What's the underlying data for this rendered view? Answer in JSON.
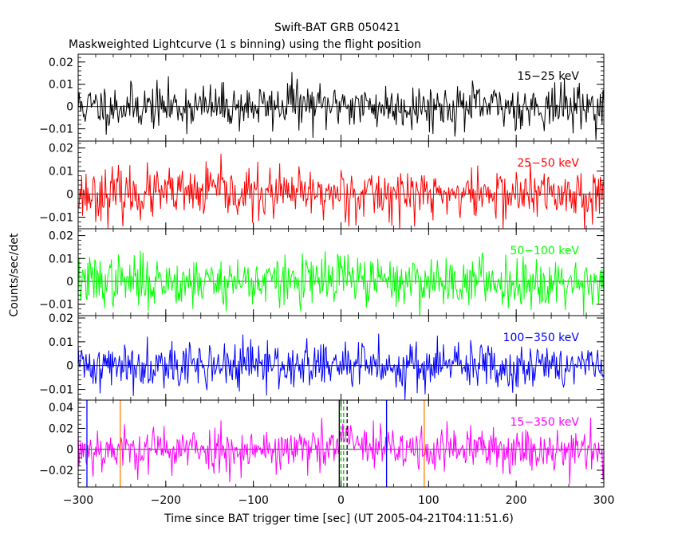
{
  "title": "Swift-BAT GRB 050421",
  "subtitle": "Maskweighted Lightcurve (1 s binning) using the flight position",
  "xlabel": "Time since BAT trigger time [sec] (UT 2005-04-21T04:11:51.6)",
  "ylabel": "Counts/sec/det",
  "chart_data": {
    "type": "line",
    "xlim": [
      -300,
      300
    ],
    "x_ticks": [
      -300,
      -200,
      -100,
      0,
      100,
      200,
      300
    ],
    "x_tick_labels": [
      "−300",
      "−200",
      "−100",
      "0",
      "100",
      "200",
      "300"
    ],
    "binning_s": 1,
    "panels": [
      {
        "name": "15−25 keV",
        "color": "#000000",
        "ylim": [
          -0.0155,
          0.0235
        ],
        "y_ticks": [
          -0.01,
          0,
          0.01,
          0.02
        ],
        "y_tick_labels": [
          "−0.01",
          "0",
          "0.01",
          "0.02"
        ],
        "noise_sigma": 0.005,
        "seed": 11,
        "peaks": [
          [
            -60,
            0.006
          ],
          [
            0,
            0.004
          ]
        ]
      },
      {
        "name": "25−50 keV",
        "color": "#ff0000",
        "ylim": [
          -0.015,
          0.023
        ],
        "y_ticks": [
          -0.01,
          0,
          0.01,
          0.02
        ],
        "y_tick_labels": [
          "−0.01",
          "0",
          "0.01",
          "0.02"
        ],
        "noise_sigma": 0.0055,
        "seed": 23,
        "peaks": [
          [
            -150,
            0.005
          ],
          [
            0,
            0.003
          ]
        ]
      },
      {
        "name": "50−100 keV",
        "color": "#00ff00",
        "ylim": [
          -0.015,
          0.023
        ],
        "y_ticks": [
          -0.01,
          0,
          0.01,
          0.02
        ],
        "y_tick_labels": [
          "−0.01",
          "0",
          "0.01",
          "0.02"
        ],
        "noise_sigma": 0.0055,
        "seed": 37,
        "peaks": [
          [
            0,
            0.006
          ]
        ]
      },
      {
        "name": "100−350 keV",
        "color": "#0000ff",
        "ylim": [
          -0.0145,
          0.021
        ],
        "y_ticks": [
          -0.01,
          0,
          0.01,
          0.02
        ],
        "y_tick_labels": [
          "−0.01",
          "0",
          "0.01",
          "0.02"
        ],
        "noise_sigma": 0.005,
        "seed": 41,
        "peaks": [
          [
            -210,
            0.008
          ]
        ]
      },
      {
        "name": "15−350 keV",
        "color": "#ff00ff",
        "ylim": [
          -0.036,
          0.047
        ],
        "y_ticks": [
          -0.02,
          0,
          0.02,
          0.04
        ],
        "y_tick_labels": [
          "−0.02",
          "0",
          "0.02",
          "0.04"
        ],
        "noise_sigma": 0.011,
        "seed": 53,
        "peaks": [
          [
            2,
            0.02
          ],
          [
            12,
            0.012
          ]
        ]
      }
    ],
    "markers": [
      {
        "x": -290,
        "color": "#0000ff",
        "style": "solid"
      },
      {
        "x": -252,
        "color": "#ff8000",
        "style": "solid"
      },
      {
        "x": -2,
        "color": "#000000",
        "style": "solid"
      },
      {
        "x": 0,
        "color": "#00c000",
        "style": "dashed"
      },
      {
        "x": 3,
        "color": "#00c000",
        "style": "dashed"
      },
      {
        "x": 7,
        "color": "#000000",
        "style": "dashed"
      },
      {
        "x": 52,
        "color": "#0000ff",
        "style": "solid"
      },
      {
        "x": 95,
        "color": "#ff8000",
        "style": "solid"
      }
    ]
  }
}
